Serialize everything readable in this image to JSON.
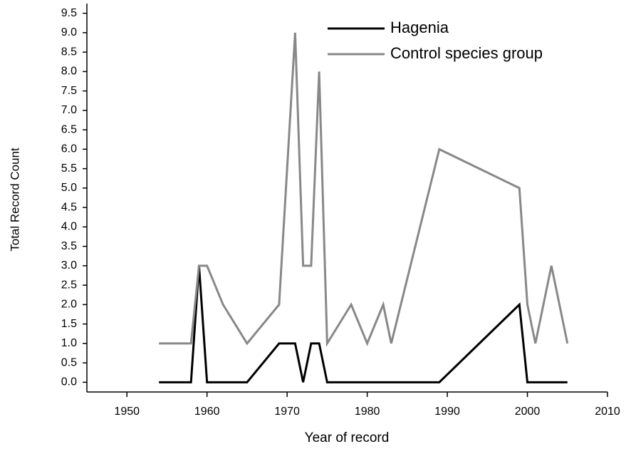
{
  "chart_data": {
    "type": "line",
    "xlabel": "Year of record",
    "ylabel": "Total Record Count",
    "xlim": [
      1945,
      2010
    ],
    "xticks": [
      1950,
      1960,
      1970,
      1980,
      1990,
      2000,
      2010
    ],
    "ylim": [
      -0.25,
      9.75
    ],
    "yticks": [
      {
        "value": 0,
        "label": "0.0"
      },
      {
        "value": 0.5,
        "label": "0.5"
      },
      {
        "value": 1,
        "label": "1.0"
      },
      {
        "value": 1.5,
        "label": "1.5"
      },
      {
        "value": 2,
        "label": "2.0"
      },
      {
        "value": 2.5,
        "label": "2.5"
      },
      {
        "value": 3,
        "label": "3.0"
      },
      {
        "value": 3.5,
        "label": "3.5"
      },
      {
        "value": 4,
        "label": "4.0"
      },
      {
        "value": 4.5,
        "label": "4.5"
      },
      {
        "value": 5,
        "label": "5.0"
      },
      {
        "value": 5.5,
        "label": "5.5"
      },
      {
        "value": 6,
        "label": "6.0"
      },
      {
        "value": 6.5,
        "label": "6.5"
      },
      {
        "value": 7,
        "label": "7.0"
      },
      {
        "value": 7.5,
        "label": "7.5"
      },
      {
        "value": 8,
        "label": "8.0"
      },
      {
        "value": 8.5,
        "label": "8.5"
      },
      {
        "value": 9,
        "label": "9.0"
      },
      {
        "value": 9.5,
        "label": "9.5"
      }
    ],
    "legend": "upper right",
    "series": [
      {
        "name": "Hagenia",
        "color": "#000000",
        "x": [
          1954,
          1958,
          1959,
          1960,
          1965,
          1969,
          1970,
          1971,
          1972,
          1973,
          1974,
          1975,
          1989,
          1999,
          2000,
          2005
        ],
        "values": [
          0,
          0,
          3,
          0,
          0,
          1,
          1,
          1,
          0,
          1,
          1,
          0,
          0,
          2,
          0,
          0
        ]
      },
      {
        "name": "Control species group",
        "color": "#888888",
        "x": [
          1954,
          1958,
          1959,
          1960,
          1962,
          1965,
          1969,
          1971,
          1972,
          1973,
          1974,
          1975,
          1978,
          1980,
          1982,
          1983,
          1989,
          1999,
          2000,
          2001,
          2003,
          2005
        ],
        "values": [
          1,
          1,
          3,
          3,
          2,
          1,
          2,
          9,
          3,
          3,
          8,
          1,
          2,
          1,
          2,
          1,
          6,
          5,
          2,
          1,
          3,
          1
        ]
      }
    ]
  }
}
